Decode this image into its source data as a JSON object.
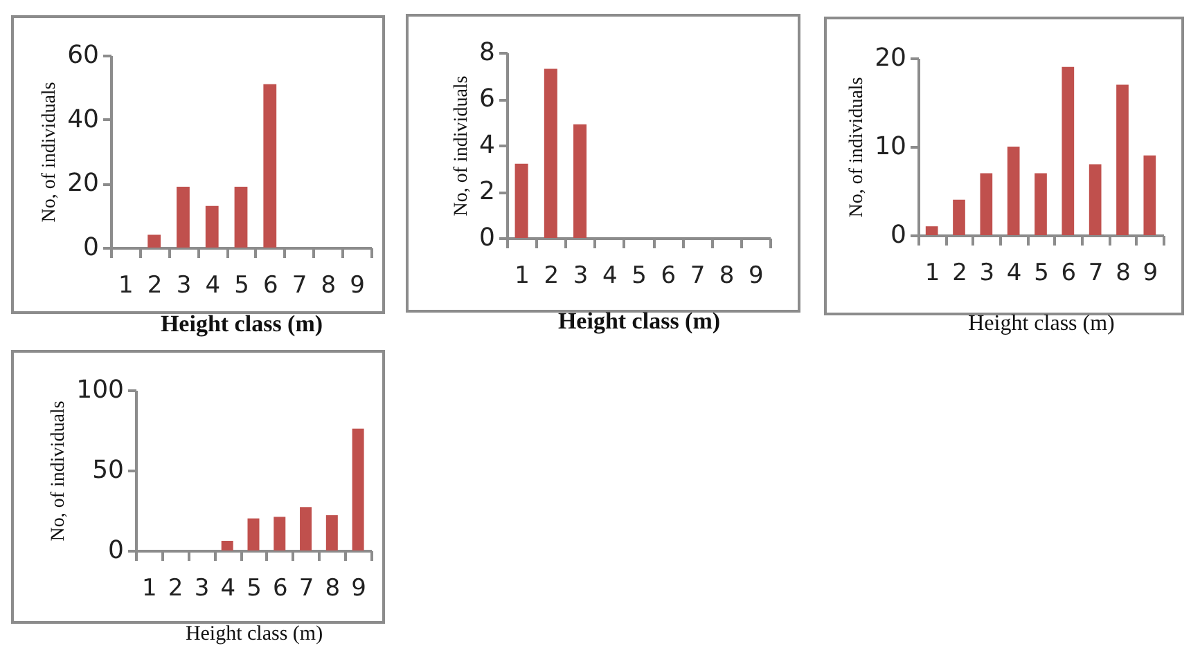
{
  "chart_data": [
    {
      "type": "bar",
      "xlabel": "Height class (m)",
      "ylabel": "No, of individuals",
      "categories": [
        "1",
        "2",
        "3",
        "4",
        "5",
        "6",
        "7",
        "8",
        "9"
      ],
      "values": [
        0,
        4,
        19,
        13,
        19,
        51,
        0,
        0,
        0
      ],
      "color": "#c0504d",
      "ylim": [
        0,
        60
      ],
      "yticks": [
        0,
        20,
        40,
        60
      ],
      "grid": false
    },
    {
      "type": "bar",
      "xlabel": "Height class (m)",
      "ylabel": "No, of individuals",
      "categories": [
        "1",
        "2",
        "3",
        "4",
        "5",
        "6",
        "7",
        "8",
        "9"
      ],
      "values": [
        3.2,
        7.3,
        4.9,
        0,
        0,
        0,
        0,
        0,
        0
      ],
      "color": "#c0504d",
      "ylim": [
        0,
        8
      ],
      "yticks": [
        0,
        2,
        4,
        6,
        8
      ],
      "grid": false
    },
    {
      "type": "bar",
      "xlabel": "Height class (m)",
      "ylabel": "No, of individuals",
      "categories": [
        "1",
        "2",
        "3",
        "4",
        "5",
        "6",
        "7",
        "8",
        "9"
      ],
      "values": [
        1,
        4,
        7,
        10,
        7,
        19,
        8,
        17,
        9
      ],
      "color": "#c0504d",
      "ylim": [
        0,
        20
      ],
      "yticks": [
        0,
        10,
        20
      ],
      "grid": false
    },
    {
      "type": "bar",
      "xlabel": "Height class (m)",
      "ylabel": "No, of individuals",
      "categories": [
        "1",
        "2",
        "3",
        "4",
        "5",
        "6",
        "7",
        "8",
        "9"
      ],
      "values": [
        0,
        0,
        0,
        6,
        20,
        21,
        27,
        22,
        76
      ],
      "color": "#c0504d",
      "ylim": [
        0,
        100
      ],
      "yticks": [
        0,
        50,
        100
      ],
      "grid": false
    }
  ]
}
